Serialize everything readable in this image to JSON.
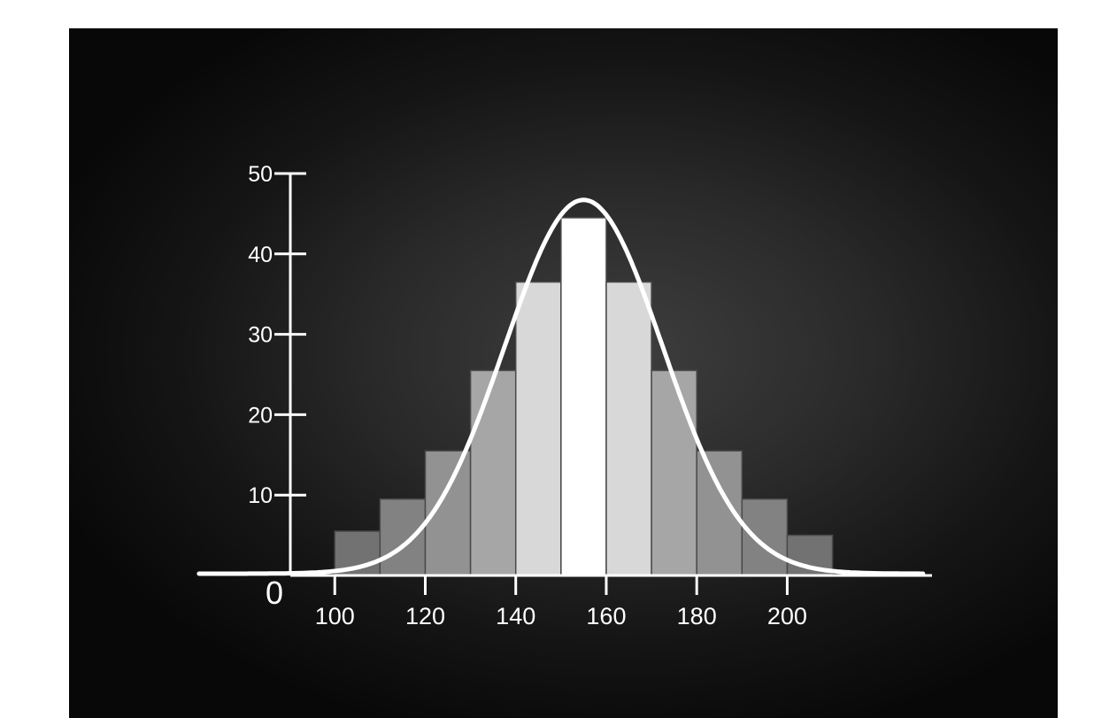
{
  "chart_data": {
    "type": "bar",
    "title": "",
    "xlabel": "",
    "ylabel": "",
    "bin_width": 10,
    "xlim": [
      62,
      232
    ],
    "ylim": [
      0,
      50
    ],
    "x_ticks": [
      100,
      120,
      140,
      160,
      180,
      200
    ],
    "x_tick_labels": [
      "100",
      "120",
      "140",
      "160",
      "180",
      "200"
    ],
    "y_ticks": [
      10,
      20,
      30,
      40,
      50
    ],
    "y_tick_labels": [
      "10",
      "20",
      "30",
      "40",
      "50"
    ],
    "origin_label": "0",
    "bins": [
      {
        "start": 100,
        "end": 110,
        "value": 5.5
      },
      {
        "start": 110,
        "end": 120,
        "value": 9.5
      },
      {
        "start": 120,
        "end": 130,
        "value": 15.5
      },
      {
        "start": 130,
        "end": 140,
        "value": 25.5
      },
      {
        "start": 140,
        "end": 150,
        "value": 36.5
      },
      {
        "start": 150,
        "end": 160,
        "value": 44.5
      },
      {
        "start": 160,
        "end": 170,
        "value": 36.5
      },
      {
        "start": 170,
        "end": 180,
        "value": 25.5
      },
      {
        "start": 180,
        "end": 190,
        "value": 15.5
      },
      {
        "start": 190,
        "end": 200,
        "value": 9.5
      },
      {
        "start": 200,
        "end": 210,
        "value": 5.0
      }
    ],
    "curve": {
      "type": "normal",
      "mean": 155,
      "peak": 46.5,
      "sd": 17.5
    },
    "grid": false,
    "legend": false
  },
  "colors": {
    "background": "#1c1c1c",
    "axis": "#ffffff",
    "curve": "#ffffff",
    "bar_shades": [
      "#727272",
      "#828282",
      "#929292",
      "#a6a6a6",
      "#d8d8d8",
      "#ffffff",
      "#d8d8d8",
      "#a6a6a6",
      "#929292",
      "#828282",
      "#727272"
    ],
    "bar_stroke": "#4a4a4a"
  }
}
